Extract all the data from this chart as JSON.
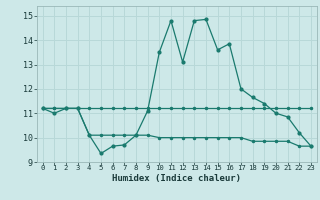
{
  "xlabel": "Humidex (Indice chaleur)",
  "background_color": "#cde8e8",
  "grid_color": "#b8d8d8",
  "line_color": "#1a7a6e",
  "xlim": [
    -0.5,
    23.5
  ],
  "ylim": [
    9,
    15.4
  ],
  "yticks": [
    9,
    10,
    11,
    12,
    13,
    14,
    15
  ],
  "xticks": [
    0,
    1,
    2,
    3,
    4,
    5,
    6,
    7,
    8,
    9,
    10,
    11,
    12,
    13,
    14,
    15,
    16,
    17,
    18,
    19,
    20,
    21,
    22,
    23
  ],
  "line1_x": [
    0,
    1,
    2,
    3,
    4,
    5,
    6,
    7,
    8,
    9,
    10,
    11,
    12,
    13,
    14,
    15,
    16,
    17,
    18,
    19,
    20,
    21,
    22,
    23
  ],
  "line1_y": [
    11.2,
    11.0,
    11.2,
    11.2,
    10.1,
    9.35,
    9.65,
    9.7,
    10.1,
    11.1,
    13.5,
    14.8,
    13.1,
    14.8,
    14.85,
    13.6,
    13.85,
    12.0,
    11.65,
    11.4,
    11.0,
    10.85,
    10.2,
    9.65
  ],
  "line2_x": [
    0,
    1,
    2,
    3,
    4,
    5,
    6,
    7,
    8,
    9,
    10,
    11,
    12,
    13,
    14,
    15,
    16,
    17,
    18,
    19,
    20,
    21,
    22,
    23
  ],
  "line2_y": [
    11.2,
    11.2,
    11.2,
    11.2,
    11.2,
    11.2,
    11.2,
    11.2,
    11.2,
    11.2,
    11.2,
    11.2,
    11.2,
    11.2,
    11.2,
    11.2,
    11.2,
    11.2,
    11.2,
    11.2,
    11.2,
    11.2,
    11.2,
    11.2
  ],
  "line3_x": [
    0,
    1,
    2,
    3,
    4,
    5,
    6,
    7,
    8,
    9,
    10,
    11,
    12,
    13,
    14,
    15,
    16,
    17,
    18,
    19,
    20,
    21,
    22,
    23
  ],
  "line3_y": [
    11.2,
    11.2,
    11.2,
    11.2,
    10.1,
    10.1,
    10.1,
    10.1,
    10.1,
    10.1,
    10.0,
    10.0,
    10.0,
    10.0,
    10.0,
    10.0,
    10.0,
    10.0,
    9.85,
    9.85,
    9.85,
    9.85,
    9.65,
    9.65
  ]
}
